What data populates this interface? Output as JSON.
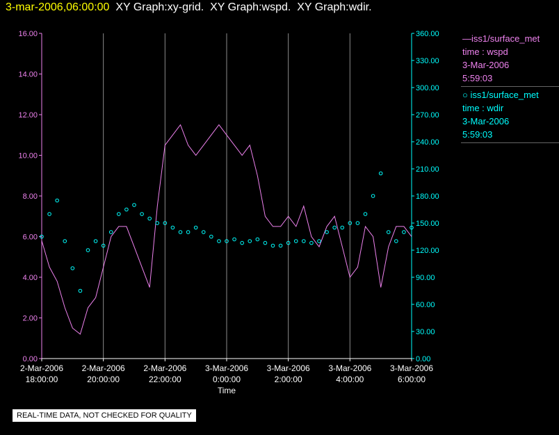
{
  "header": {
    "timestamp": "3-mar-2006,06:00:00",
    "graphs": [
      "XY Graph:xy-grid.",
      "XY Graph:wspd.",
      "XY Graph:wdir."
    ]
  },
  "footer": {
    "qc_note": "REAL-TIME DATA, NOT CHECKED FOR QUALITY"
  },
  "legend": {
    "items": [
      {
        "symbol": "—",
        "source": "iss1/surface_met",
        "field": "time : wspd",
        "date": "3-Mar-2006",
        "time": "5:59:03",
        "color": "#ee82ee"
      },
      {
        "symbol": "○",
        "source": "iss1/surface_met",
        "field": "time : wdir",
        "date": "3-Mar-2006",
        "time": "5:59:03",
        "color": "#00ffff"
      }
    ]
  },
  "chart_data": {
    "type": "line",
    "xlabel": "Time",
    "x_ticks": [
      {
        "date": "2-Mar-2006",
        "time": "18:00:00",
        "hours": 0
      },
      {
        "date": "2-Mar-2006",
        "time": "20:00:00",
        "hours": 2
      },
      {
        "date": "2-Mar-2006",
        "time": "22:00:00",
        "hours": 4
      },
      {
        "date": "3-Mar-2006",
        "time": "0:00:00",
        "hours": 6
      },
      {
        "date": "3-Mar-2006",
        "time": "2:00:00",
        "hours": 8
      },
      {
        "date": "3-Mar-2006",
        "time": "4:00:00",
        "hours": 10
      },
      {
        "date": "3-Mar-2006",
        "time": "6:00:00",
        "hours": 12
      }
    ],
    "xlim_hours": [
      0,
      12
    ],
    "left_axis": {
      "ylim": [
        0,
        16
      ],
      "ticks": [
        "0.00",
        "2.00",
        "4.00",
        "6.00",
        "8.00",
        "10.00",
        "12.00",
        "14.00",
        "16.00"
      ],
      "color": "#ee82ee"
    },
    "right_axis": {
      "ylim": [
        0,
        360
      ],
      "ticks": [
        "0.00",
        "30.00",
        "60.00",
        "90.00",
        "120.00",
        "150.00",
        "180.00",
        "210.00",
        "240.00",
        "270.00",
        "300.00",
        "330.00",
        "360.00"
      ],
      "color": "#00ffff"
    },
    "grid": "vertical",
    "series": [
      {
        "field": "wspd",
        "axis": "left",
        "style": "line",
        "color": "#ee82ee",
        "x": [
          0,
          0.25,
          0.5,
          0.75,
          1,
          1.25,
          1.5,
          1.75,
          2,
          2.25,
          2.5,
          2.75,
          3,
          3.25,
          3.5,
          3.75,
          4,
          4.25,
          4.5,
          4.75,
          5,
          5.25,
          5.5,
          5.75,
          6,
          6.25,
          6.5,
          6.75,
          7,
          7.25,
          7.5,
          7.75,
          8,
          8.25,
          8.5,
          8.75,
          9,
          9.25,
          9.5,
          9.75,
          10,
          10.25,
          10.5,
          10.75,
          11,
          11.25,
          11.5,
          11.75,
          12
        ],
        "y": [
          5.8,
          4.5,
          3.8,
          2.5,
          1.5,
          1.2,
          2.5,
          3.0,
          4.5,
          6.0,
          6.5,
          6.5,
          5.5,
          4.5,
          3.5,
          7.5,
          10.5,
          11.0,
          11.5,
          10.5,
          10.0,
          10.5,
          11.0,
          11.5,
          11.0,
          10.5,
          10.0,
          10.5,
          9.0,
          7.0,
          6.5,
          6.5,
          7.0,
          6.5,
          7.5,
          6.0,
          5.5,
          6.5,
          7.0,
          5.5,
          4.0,
          4.5,
          6.5,
          6.0,
          3.5,
          5.5,
          6.5,
          6.5,
          6.0
        ]
      },
      {
        "field": "wdir",
        "axis": "right",
        "style": "circles",
        "color": "#00ffff",
        "x": [
          0,
          0.25,
          0.5,
          0.75,
          1,
          1.25,
          1.5,
          1.75,
          2,
          2.25,
          2.5,
          2.75,
          3,
          3.25,
          3.5,
          3.75,
          4,
          4.25,
          4.5,
          4.75,
          5,
          5.25,
          5.5,
          5.75,
          6,
          6.25,
          6.5,
          6.75,
          7,
          7.25,
          7.5,
          7.75,
          8,
          8.25,
          8.5,
          8.75,
          9,
          9.25,
          9.5,
          9.75,
          10,
          10.25,
          10.5,
          10.75,
          11,
          11.25,
          11.5,
          11.75,
          12
        ],
        "y": [
          135,
          160,
          175,
          130,
          100,
          75,
          120,
          130,
          125,
          140,
          160,
          165,
          170,
          160,
          155,
          150,
          150,
          145,
          140,
          140,
          145,
          140,
          135,
          130,
          130,
          132,
          128,
          130,
          132,
          128,
          125,
          125,
          128,
          130,
          130,
          128,
          130,
          140,
          145,
          145,
          150,
          150,
          160,
          180,
          205,
          140,
          130,
          140,
          145
        ]
      }
    ]
  }
}
